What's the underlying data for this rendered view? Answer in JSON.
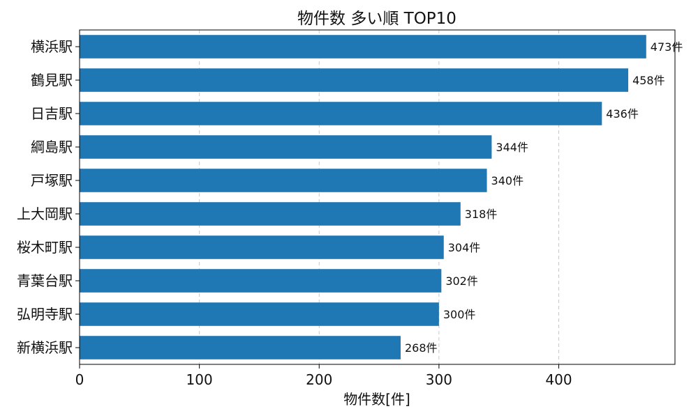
{
  "chart_data": {
    "type": "bar",
    "orientation": "horizontal",
    "title": "物件数 多い順 TOP10",
    "xlabel": "物件数[件]",
    "ylabel": "",
    "categories": [
      "横浜駅",
      "鶴見駅",
      "日吉駅",
      "綱島駅",
      "戸塚駅",
      "上大岡駅",
      "桜木町駅",
      "青葉台駅",
      "弘明寺駅",
      "新横浜駅"
    ],
    "values": [
      473,
      458,
      436,
      344,
      340,
      318,
      304,
      302,
      300,
      268
    ],
    "value_labels": [
      "473件",
      "458件",
      "436件",
      "344件",
      "340件",
      "318件",
      "304件",
      "302件",
      "300件",
      "268件"
    ],
    "xlim": [
      0,
      497
    ],
    "xticks": [
      0,
      100,
      200,
      300,
      400
    ],
    "xtick_labels": [
      "0",
      "100",
      "200",
      "300",
      "400"
    ],
    "grid": "x-dashed",
    "bar_color": "#1f77b4"
  }
}
